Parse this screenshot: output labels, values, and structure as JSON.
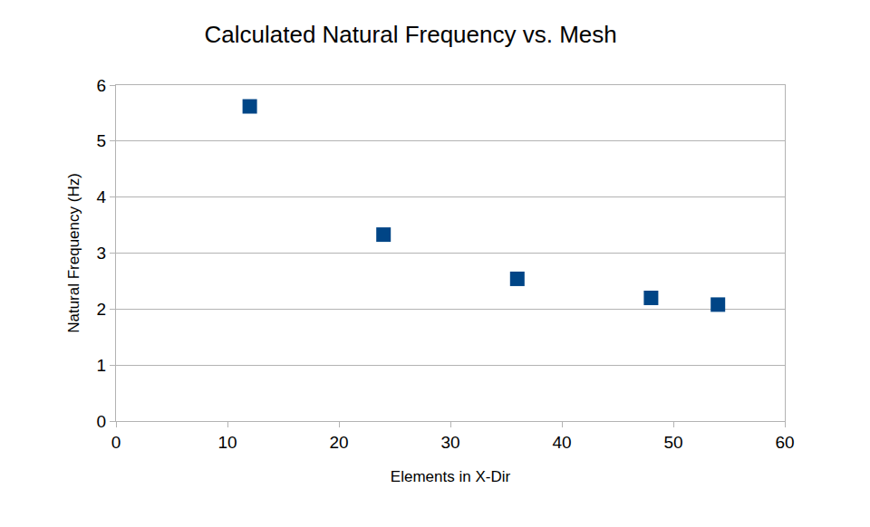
{
  "chart_data": {
    "type": "scatter",
    "title": "Calculated Natural Frequency vs. Mesh",
    "x_label": "Elements in X-Dir",
    "y_label": "Natural Frequency (Hz)",
    "x": [
      12,
      24,
      36,
      48,
      54
    ],
    "values": [
      5.62,
      3.33,
      2.54,
      2.2,
      2.08
    ],
    "color": "#004586",
    "marker": "square",
    "xlim": [
      0,
      60
    ],
    "xticks": [
      0,
      10,
      20,
      30,
      40,
      50,
      60
    ],
    "ylim": [
      0,
      6
    ],
    "yticks": [
      0,
      1,
      2,
      3,
      4,
      5,
      6
    ],
    "grid": true
  }
}
